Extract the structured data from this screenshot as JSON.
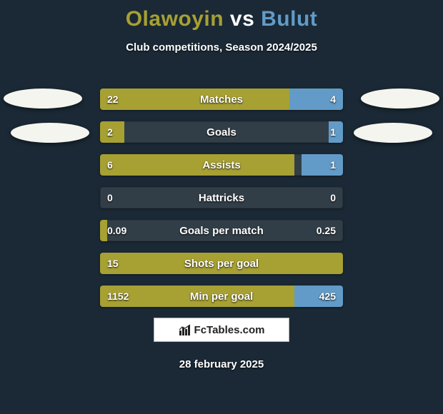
{
  "background_color": "#1a2935",
  "title": {
    "player1": "Olawoyin",
    "vs": "vs",
    "player2": "Bulut",
    "p1_color": "#a7a033",
    "vs_color": "#ffffff",
    "p2_color": "#629bc7",
    "fontsize": 30
  },
  "subtitle": "Club competitions, Season 2024/2025",
  "marker_color": "#f5f5f0",
  "chart": {
    "type": "diverging-bar",
    "left_color": "#a7a033",
    "right_color": "#629bc7",
    "neutral_color": "#323e47",
    "text_color": "#ffffff",
    "label_fontsize": 15,
    "value_fontsize": 14,
    "rows": [
      {
        "label": "Matches",
        "left_val": "22",
        "right_val": "4",
        "left_pct": 78,
        "right_pct": 22
      },
      {
        "label": "Goals",
        "left_val": "2",
        "right_val": "1",
        "left_pct": 10,
        "right_pct": 6
      },
      {
        "label": "Assists",
        "left_val": "6",
        "right_val": "1",
        "left_pct": 80,
        "right_pct": 17
      },
      {
        "label": "Hattricks",
        "left_val": "0",
        "right_val": "0",
        "left_pct": 0,
        "right_pct": 0
      },
      {
        "label": "Goals per match",
        "left_val": "0.09",
        "right_val": "0.25",
        "left_pct": 3,
        "right_pct": 0
      },
      {
        "label": "Shots per goal",
        "left_val": "15",
        "right_val": "",
        "left_pct": 100,
        "right_pct": 0
      },
      {
        "label": "Min per goal",
        "left_val": "1152",
        "right_val": "425",
        "left_pct": 80,
        "right_pct": 20
      }
    ]
  },
  "logo": {
    "text": "FcTables.com",
    "icon_name": "bar-chart-icon"
  },
  "date": "28 february 2025"
}
